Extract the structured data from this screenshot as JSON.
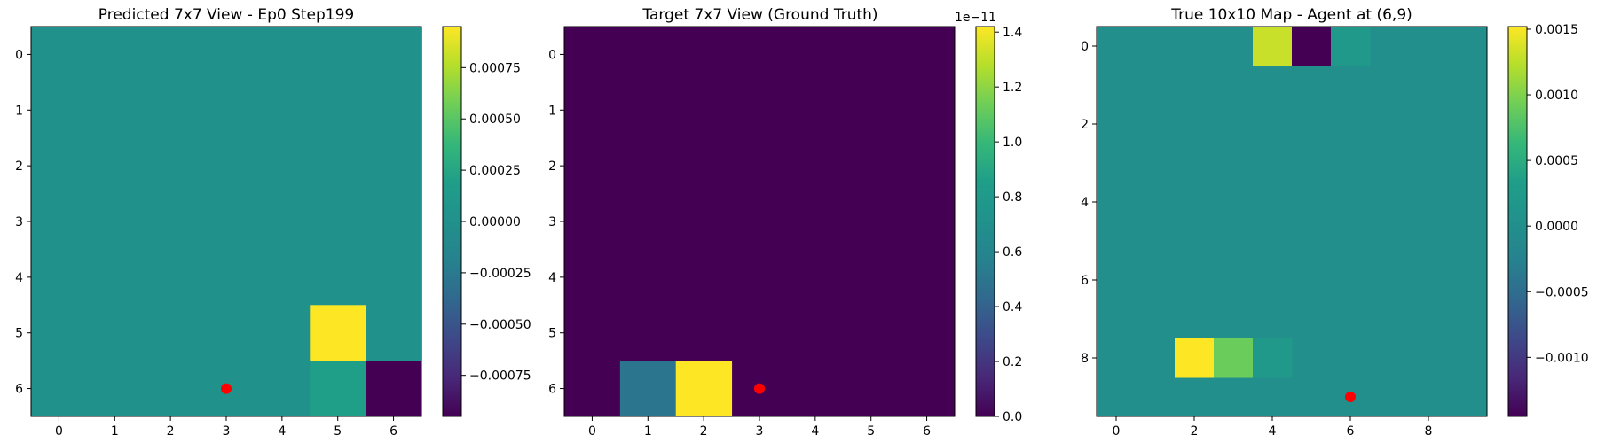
{
  "chart_data": [
    {
      "type": "heatmap",
      "title": "Predicted 7x7 View - Ep0 Step199",
      "rows": 7,
      "cols": 7,
      "x_ticks": [
        "0",
        "1",
        "2",
        "3",
        "4",
        "5",
        "6"
      ],
      "y_ticks": [
        "0",
        "1",
        "2",
        "3",
        "4",
        "5",
        "6"
      ],
      "vmin": -0.00095,
      "vmax": 0.00095,
      "colorbar_ticks": [
        -0.00075,
        -0.0005,
        -0.00025,
        0.0,
        0.00025,
        0.0005,
        0.00075
      ],
      "colorbar_labels": [
        "−0.00075",
        "−0.00050",
        "−0.00025",
        "0.00000",
        "0.00025",
        "0.00050",
        "0.00075"
      ],
      "colorbar_exponent": "",
      "default_value": 0.0,
      "cells": [
        {
          "row": 5,
          "col": 5,
          "value": 0.00095
        },
        {
          "row": 6,
          "col": 5,
          "value": 0.0002
        },
        {
          "row": 6,
          "col": 6,
          "value": -0.00095
        }
      ],
      "marker": {
        "x": 3,
        "y": 6,
        "color": "#ff0000"
      }
    },
    {
      "type": "heatmap",
      "title": "Target 7x7 View (Ground Truth)",
      "rows": 7,
      "cols": 7,
      "x_ticks": [
        "0",
        "1",
        "2",
        "3",
        "4",
        "5",
        "6"
      ],
      "y_ticks": [
        "0",
        "1",
        "2",
        "3",
        "4",
        "5",
        "6"
      ],
      "vmin": 0.0,
      "vmax": 1.42,
      "colorbar_ticks": [
        0.0,
        0.2,
        0.4,
        0.6,
        0.8,
        1.0,
        1.2,
        1.4
      ],
      "colorbar_labels": [
        "0.0",
        "0.2",
        "0.4",
        "0.6",
        "0.8",
        "1.0",
        "1.2",
        "1.4"
      ],
      "colorbar_exponent": "1e−11",
      "default_value": 0.0,
      "cells": [
        {
          "row": 6,
          "col": 1,
          "value": 0.5
        },
        {
          "row": 6,
          "col": 2,
          "value": 1.42
        }
      ],
      "marker": {
        "x": 3,
        "y": 6,
        "color": "#ff0000"
      }
    },
    {
      "type": "heatmap",
      "title": "True 10x10 Map - Agent at (6,9)",
      "rows": 10,
      "cols": 10,
      "x_ticks": [
        "0",
        "2",
        "4",
        "6",
        "8"
      ],
      "x_tick_values": [
        0,
        2,
        4,
        6,
        8
      ],
      "y_ticks": [
        "0",
        "2",
        "4",
        "6",
        "8"
      ],
      "y_tick_values": [
        0,
        2,
        4,
        6,
        8
      ],
      "vmin": -0.00145,
      "vmax": 0.00152,
      "colorbar_ticks": [
        -0.001,
        -0.0005,
        0.0,
        0.0005,
        0.001,
        0.0015
      ],
      "colorbar_labels": [
        "−0.0010",
        "−0.0005",
        "0.0000",
        "0.0005",
        "0.0010",
        "0.0015"
      ],
      "colorbar_exponent": "",
      "default_value": 0.0,
      "cells": [
        {
          "row": 0,
          "col": 4,
          "value": 0.0013
        },
        {
          "row": 0,
          "col": 5,
          "value": -0.00145
        },
        {
          "row": 0,
          "col": 6,
          "value": 0.0002
        },
        {
          "row": 8,
          "col": 2,
          "value": 0.00152
        },
        {
          "row": 8,
          "col": 3,
          "value": 0.0009
        },
        {
          "row": 8,
          "col": 4,
          "value": 0.0002
        }
      ],
      "marker": {
        "x": 6,
        "y": 9,
        "color": "#ff0000"
      }
    }
  ]
}
